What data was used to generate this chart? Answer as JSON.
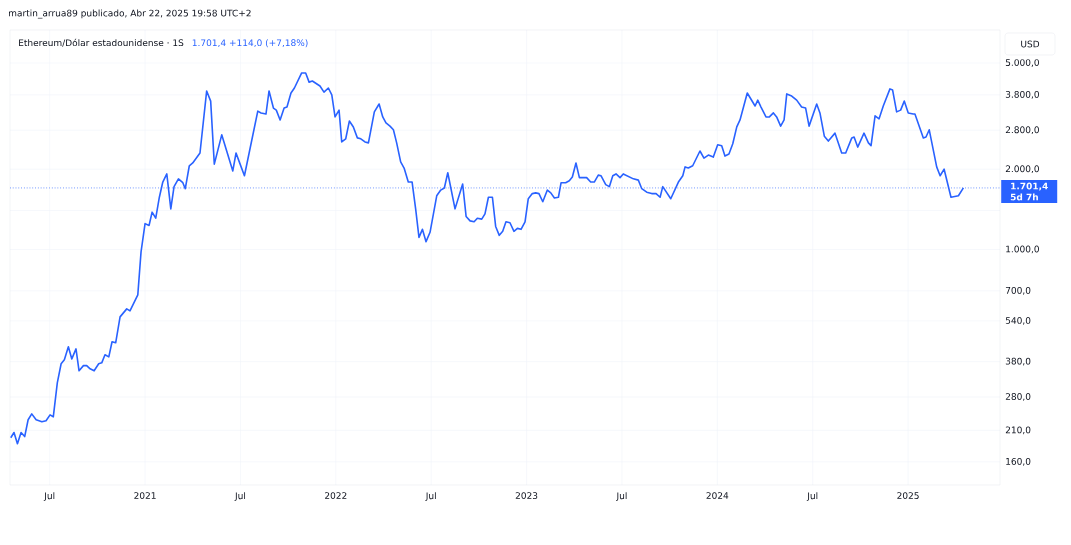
{
  "chart_data": {
    "type": "line",
    "title": "Ethereum/Dólar estadounidense · 1S",
    "subtitle": "1.701,4  +114,0 (+7,18%)",
    "ylabel": "USD",
    "annotations": [
      "martin_arrua89 publicado, Abr 22, 2025 19:58 UTC+2",
      "5d 7h"
    ],
    "color": "#2962ff",
    "line_style": "solid",
    "log": "y",
    "grid": true,
    "xlim": [
      2020.292,
      2025.482
    ],
    "xticks": [
      {
        "value": 2020.5,
        "label": "Jul"
      },
      2021,
      {
        "value": 2021.5,
        "label": "Jul"
      },
      2022,
      {
        "value": 2022.5,
        "label": "Jul"
      },
      2023,
      {
        "value": 2023.5,
        "label": "Jul"
      },
      2024,
      {
        "value": 2024.5,
        "label": "Jul"
      },
      2025
    ],
    "ylim": [
      131,
      6650
    ],
    "yticks": [
      {
        "value": 160,
        "label": "160,0"
      },
      {
        "value": 210,
        "label": "210,0"
      },
      {
        "value": 280,
        "label": "280,0"
      },
      {
        "value": 380,
        "label": "380,0"
      },
      {
        "value": 540,
        "label": "540,0"
      },
      {
        "value": 700,
        "label": "700,0"
      },
      {
        "value": 1000,
        "label": "1.000,0"
      },
      {
        "value": 1400,
        "label": null
      },
      {
        "value": 2000,
        "label": "2.000,0"
      },
      {
        "value": 2800,
        "label": "2.800,0"
      },
      {
        "value": 3800,
        "label": "3.800,0"
      },
      {
        "value": 5000,
        "label": "5.000,0"
      }
    ],
    "ref_lines": [
      {
        "axis": "y",
        "value": 1701.4,
        "label": "1.701,4",
        "color": "#2962ff",
        "line_style": "dotted"
      }
    ],
    "x": [
      2020.296,
      2020.313,
      2020.331,
      2020.35,
      2020.369,
      2020.387,
      2020.406,
      2020.429,
      2020.459,
      2020.481,
      2020.502,
      2020.519,
      2020.54,
      2020.56,
      2020.577,
      2020.598,
      2020.616,
      2020.638,
      2020.654,
      2020.677,
      2020.694,
      2020.712,
      2020.733,
      2020.757,
      2020.773,
      2020.79,
      2020.81,
      2020.827,
      2020.846,
      2020.869,
      2020.904,
      2020.921,
      2020.962,
      2020.979,
      2021.0,
      2021.021,
      2021.037,
      2021.056,
      2021.075,
      2021.093,
      2021.114,
      2021.135,
      2021.152,
      2021.175,
      2021.198,
      2021.211,
      2021.232,
      2021.25,
      2021.288,
      2021.323,
      2021.344,
      2021.363,
      2021.402,
      2021.46,
      2021.477,
      2021.494,
      2021.521,
      2021.591,
      2021.608,
      2021.634,
      2021.65,
      2021.673,
      2021.688,
      2021.708,
      2021.729,
      2021.744,
      2021.765,
      2021.783,
      2021.821,
      2021.842,
      2021.86,
      2021.877,
      2021.917,
      2021.938,
      2021.961,
      2021.979,
      2021.996,
      2022.017,
      2022.031,
      2022.052,
      2022.071,
      2022.092,
      2022.113,
      2022.131,
      2022.153,
      2022.171,
      2022.202,
      2022.227,
      2022.246,
      2022.263,
      2022.284,
      2022.302,
      2022.319,
      2022.34,
      2022.358,
      2022.38,
      2022.4,
      2022.419,
      2022.436,
      2022.454,
      2022.473,
      2022.494,
      2022.529,
      2022.55,
      2022.569,
      2022.587,
      2022.625,
      2022.665,
      2022.683,
      2022.704,
      2022.725,
      2022.742,
      2022.765,
      2022.782,
      2022.8,
      2022.821,
      2022.838,
      2022.857,
      2022.875,
      2022.892,
      2022.913,
      2022.934,
      2022.952,
      2022.971,
      2022.992,
      2023.009,
      2023.03,
      2023.048,
      2023.065,
      2023.085,
      2023.109,
      2023.127,
      2023.146,
      2023.167,
      2023.181,
      2023.205,
      2023.224,
      2023.24,
      2023.259,
      2023.277,
      2023.315,
      2023.336,
      2023.355,
      2023.376,
      2023.39,
      2023.415,
      2023.434,
      2023.452,
      2023.469,
      2023.49,
      2023.507,
      2023.56,
      2023.586,
      2023.604,
      2023.63,
      2023.656,
      2023.679,
      2023.7,
      2023.714,
      2023.756,
      2023.796,
      2023.819,
      2023.831,
      2023.848,
      2023.871,
      2023.909,
      2023.93,
      2023.953,
      2023.979,
      2024.002,
      2024.023,
      2024.04,
      2024.061,
      2024.081,
      2024.102,
      2024.119,
      2024.157,
      2024.198,
      2024.212,
      2024.229,
      2024.255,
      2024.273,
      2024.294,
      2024.311,
      2024.332,
      2024.35,
      2024.364,
      2024.39,
      2024.416,
      2024.442,
      2024.463,
      2024.481,
      2024.521,
      2024.538,
      2024.561,
      2024.582,
      2024.617,
      2024.652,
      2024.673,
      2024.705,
      2024.717,
      2024.736,
      2024.769,
      2024.792,
      2024.806,
      2024.827,
      2024.848,
      2024.87,
      2024.905,
      2024.919,
      2024.94,
      2024.961,
      2024.98,
      2025.001,
      2025.027,
      2025.036,
      2025.08,
      2025.094,
      2025.111,
      2025.15,
      2025.168,
      2025.189,
      2025.225,
      2025.264,
      2025.29
    ],
    "values": [
      197,
      206,
      187,
      206,
      199,
      230,
      242,
      230,
      226,
      228,
      240,
      236,
      316,
      373,
      386,
      432,
      389,
      424,
      351,
      367,
      367,
      357,
      351,
      373,
      376,
      403,
      396,
      451,
      447,
      559,
      599,
      589,
      676,
      980,
      1250,
      1230,
      1380,
      1310,
      1570,
      1790,
      1920,
      1420,
      1720,
      1840,
      1780,
      1690,
      2060,
      2110,
      2300,
      3930,
      3600,
      2090,
      2690,
      1970,
      2300,
      2130,
      1890,
      3300,
      3250,
      3220,
      3930,
      3390,
      3330,
      3060,
      3390,
      3420,
      3860,
      4030,
      4590,
      4590,
      4240,
      4280,
      4100,
      3890,
      4030,
      3800,
      3140,
      3330,
      2530,
      2600,
      3030,
      2880,
      2620,
      2600,
      2530,
      2510,
      3280,
      3510,
      3140,
      2980,
      2900,
      2810,
      2510,
      2130,
      2020,
      1790,
      1790,
      1410,
      1110,
      1190,
      1070,
      1160,
      1590,
      1670,
      1700,
      1940,
      1420,
      1760,
      1330,
      1280,
      1270,
      1310,
      1300,
      1360,
      1570,
      1570,
      1220,
      1130,
      1170,
      1270,
      1260,
      1170,
      1200,
      1190,
      1270,
      1550,
      1620,
      1630,
      1620,
      1510,
      1670,
      1630,
      1560,
      1570,
      1780,
      1780,
      1810,
      1870,
      2110,
      1860,
      1860,
      1790,
      1790,
      1900,
      1890,
      1750,
      1720,
      1890,
      1920,
      1860,
      1920,
      1840,
      1820,
      1690,
      1640,
      1620,
      1620,
      1570,
      1720,
      1550,
      1790,
      1890,
      2040,
      2020,
      2060,
      2340,
      2200,
      2260,
      2220,
      2470,
      2450,
      2240,
      2280,
      2490,
      2880,
      3060,
      3860,
      3450,
      3630,
      3420,
      3140,
      3140,
      3250,
      3140,
      2900,
      3060,
      3830,
      3760,
      3630,
      3420,
      3390,
      2900,
      3510,
      3250,
      2660,
      2550,
      2730,
      2300,
      2300,
      2620,
      2640,
      2420,
      2730,
      2510,
      2450,
      3170,
      3090,
      3450,
      4000,
      3960,
      3280,
      3330,
      3600,
      3250,
      3220,
      3220,
      2620,
      2640,
      2810,
      2040,
      1890,
      2000,
      1570,
      1590,
      1701.4
    ]
  }
}
